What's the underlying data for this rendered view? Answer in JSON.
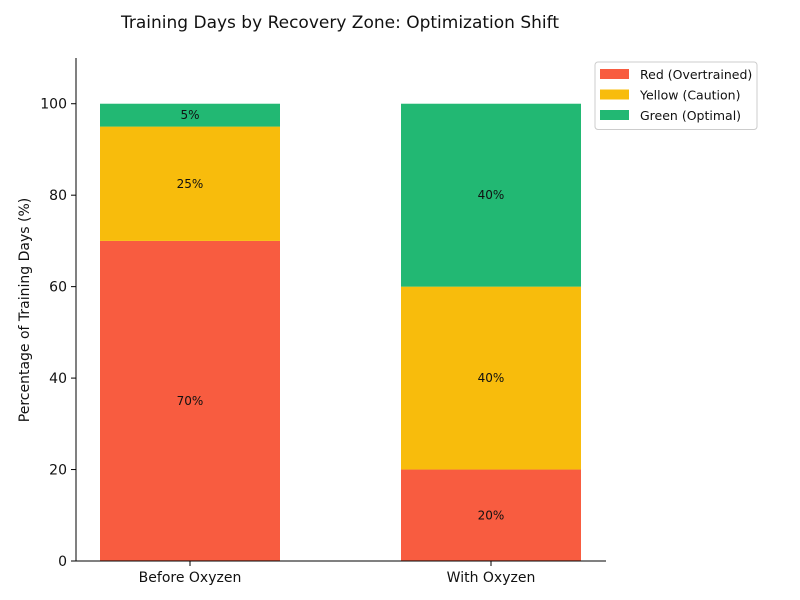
{
  "chart_data": {
    "type": "bar",
    "stacked": true,
    "title": "Training Days by Recovery Zone: Optimization Shift",
    "xlabel": "",
    "ylabel": "Percentage of Training Days (%)",
    "ylim": [
      0,
      110
    ],
    "yticks": [
      0,
      20,
      40,
      60,
      80,
      100
    ],
    "categories": [
      "Before Oxyzen",
      "With Oxyzen"
    ],
    "series": [
      {
        "name": "Red (Overtrained)",
        "values": [
          70,
          20
        ],
        "color": "#F85C40"
      },
      {
        "name": "Yellow (Caution)",
        "values": [
          25,
          40
        ],
        "color": "#F8BC0C"
      },
      {
        "name": "Green (Optimal)",
        "values": [
          5,
          40
        ],
        "color": "#22B873"
      }
    ],
    "data_labels": [
      [
        "70%",
        "20%"
      ],
      [
        "25%",
        "40%"
      ],
      [
        "5%",
        "40%"
      ]
    ],
    "grid": false,
    "legend": "top-right"
  }
}
